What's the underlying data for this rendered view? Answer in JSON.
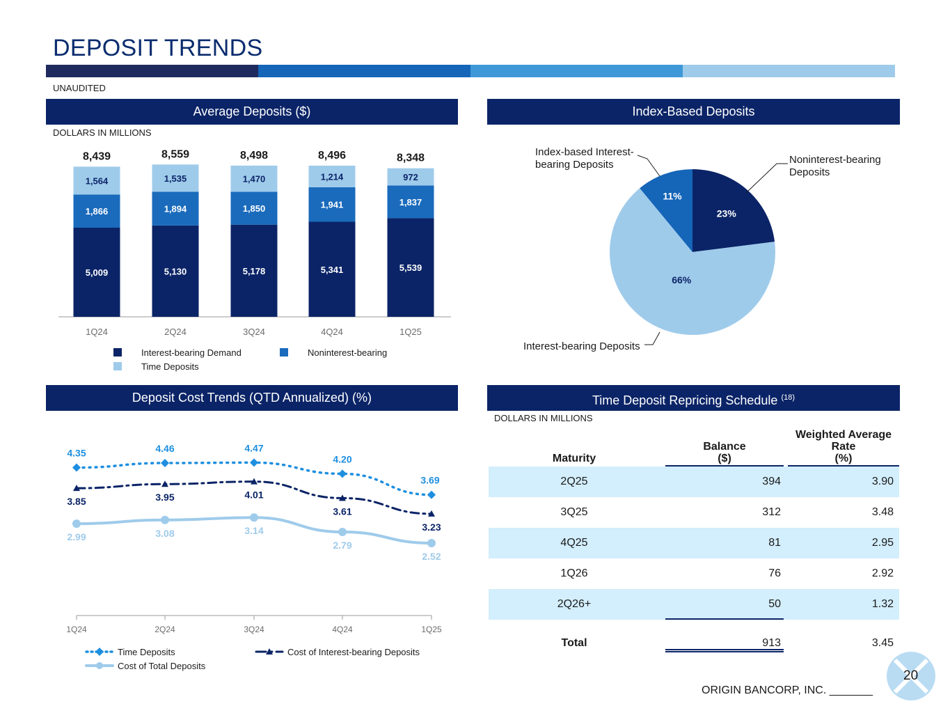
{
  "slide": {
    "title": "DEPOSIT TRENDS",
    "unaudited": "UNAUDITED",
    "footer": "ORIGIN BANCORP, INC. _______",
    "page_number": "20",
    "colors": {
      "navy": "#0b2467",
      "mid_blue": "#1a6bbc",
      "light_blue": "#9fcbeb",
      "bright_blue": "#1e8fe0",
      "table_shade": "#d3eefc"
    }
  },
  "panels": {
    "avg_deposits": {
      "title": "Average Deposits ($)",
      "units": "DOLLARS IN MILLIONS"
    },
    "index_deposits": {
      "title": "Index-Based Deposits"
    },
    "cost_trends": {
      "title": "Deposit Cost Trends (QTD Annualized) (%)"
    },
    "repricing": {
      "title": "Time Deposit Repricing Schedule",
      "footnote": "(18)",
      "units": "DOLLARS IN MILLIONS"
    }
  },
  "chart_data": [
    {
      "type": "bar",
      "stacked": true,
      "title": "Average Deposits ($)",
      "categories": [
        "1Q24",
        "2Q24",
        "3Q24",
        "4Q24",
        "1Q25"
      ],
      "series": [
        {
          "name": "Interest-bearing Demand",
          "color": "#0b2467",
          "values": [
            5009,
            5130,
            5178,
            5341,
            5539
          ],
          "labels": [
            "5,009",
            "5,130",
            "5,178",
            "5,341",
            "5,539"
          ]
        },
        {
          "name": "Noninterest-bearing",
          "color": "#1a6bbc",
          "values": [
            1866,
            1894,
            1850,
            1941,
            1837
          ],
          "labels": [
            "1,866",
            "1,894",
            "1,850",
            "1,941",
            "1,837"
          ]
        },
        {
          "name": "Time Deposits",
          "color": "#9fcbeb",
          "values": [
            1564,
            1535,
            1470,
            1214,
            972
          ],
          "labels": [
            "1,564",
            "1,535",
            "1,470",
            "1,214",
            "972"
          ]
        }
      ],
      "totals": [
        "8,439",
        "8,559",
        "8,498",
        "8,496",
        "8,348"
      ],
      "ylim": [
        0,
        9000
      ]
    },
    {
      "type": "pie",
      "title": "Index-Based Deposits",
      "slices": [
        {
          "name": "Noninterest-bearing Deposits",
          "value": 23,
          "label": "23%",
          "color": "#0b2467",
          "callout": [
            "Noninterest-bearing",
            "Deposits"
          ]
        },
        {
          "name": "Interest-bearing Deposits",
          "value": 66,
          "label": "66%",
          "color": "#9fcbeb",
          "callout": [
            "Interest-bearing Deposits"
          ]
        },
        {
          "name": "Index-based Interest-bearing Deposits",
          "value": 11,
          "label": "11%",
          "color": "#1565b8",
          "callout": [
            "Index-based Interest-",
            "bearing Deposits"
          ]
        }
      ]
    },
    {
      "type": "line",
      "title": "Deposit Cost Trends (QTD Annualized) (%)",
      "categories": [
        "1Q24",
        "2Q24",
        "3Q24",
        "4Q24",
        "1Q25"
      ],
      "ylim": [
        2.0,
        4.8
      ],
      "series": [
        {
          "name": "Time Deposits",
          "values": [
            4.35,
            4.46,
            4.47,
            4.2,
            3.69
          ],
          "labels": [
            "4.35",
            "4.46",
            "4.47",
            "4.20",
            "3.69"
          ],
          "color": "#1e8fe0",
          "style": "dotted",
          "marker": "diamond"
        },
        {
          "name": "Cost of Interest-bearing Deposits",
          "values": [
            3.85,
            3.95,
            4.01,
            3.61,
            3.23
          ],
          "labels": [
            "3.85",
            "3.95",
            "4.01",
            "3.61",
            "3.23"
          ],
          "color": "#0b2467",
          "style": "dashdot",
          "marker": "triangle"
        },
        {
          "name": "Cost of Total Deposits",
          "values": [
            2.99,
            3.08,
            3.14,
            2.79,
            2.52
          ],
          "labels": [
            "2.99",
            "3.08",
            "3.14",
            "2.79",
            "2.52"
          ],
          "color": "#9fcbeb",
          "style": "solid",
          "marker": "circle"
        }
      ]
    },
    {
      "type": "table",
      "title": "Time Deposit Repricing Schedule",
      "columns": [
        "Maturity",
        "Balance ($)",
        "Weighted Average Rate (%)"
      ],
      "rows": [
        {
          "maturity": "2Q25",
          "balance": "394",
          "rate": "3.90"
        },
        {
          "maturity": "3Q25",
          "balance": "312",
          "rate": "3.48"
        },
        {
          "maturity": "4Q25",
          "balance": "81",
          "rate": "2.95"
        },
        {
          "maturity": "1Q26",
          "balance": "76",
          "rate": "2.92"
        },
        {
          "maturity": "2Q26+",
          "balance": "50",
          "rate": "1.32"
        }
      ],
      "total": {
        "maturity": "Total",
        "balance": "913",
        "rate": "3.45"
      }
    }
  ],
  "table_headers": {
    "maturity": "Maturity",
    "balance_1": "Balance",
    "balance_2": "($)",
    "rate_1": "Weighted Average",
    "rate_2": "Rate",
    "rate_3": "(%)"
  }
}
